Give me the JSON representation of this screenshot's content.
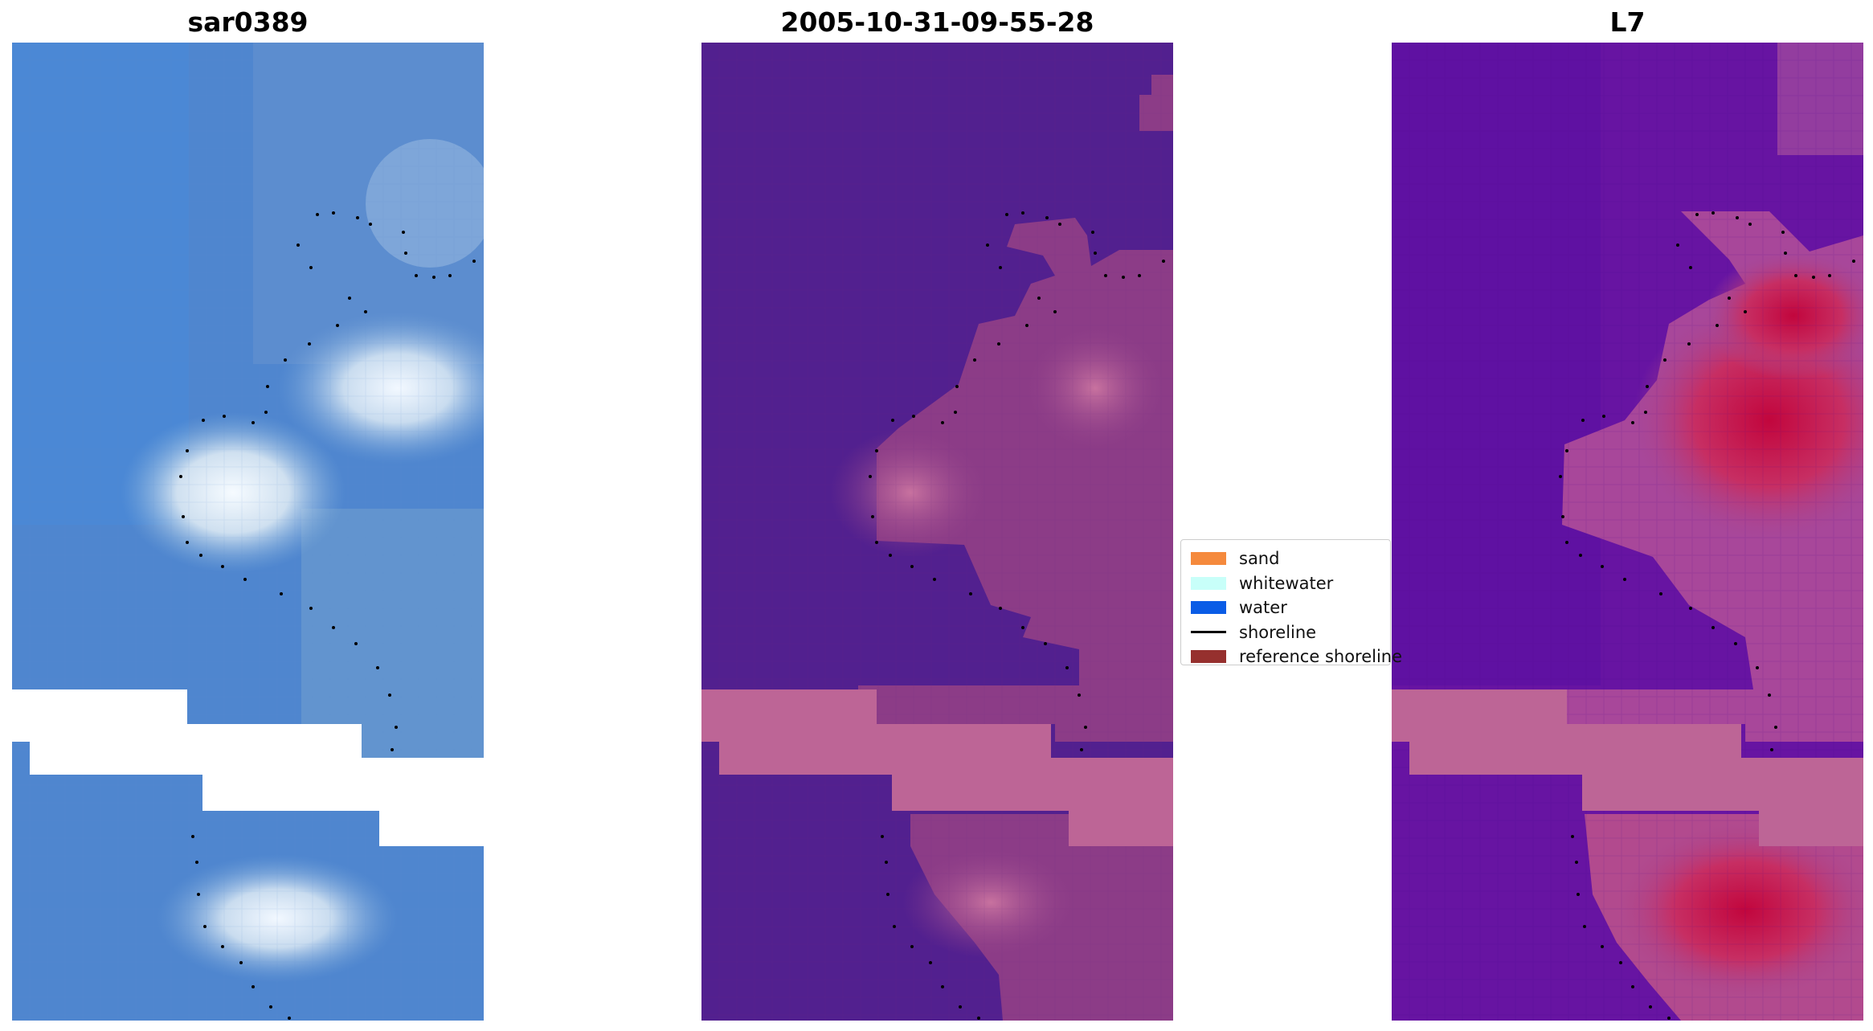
{
  "panels": [
    {
      "id": "sar",
      "title": "sar0389"
    },
    {
      "id": "classification",
      "title": "2005-10-31-09-55-28"
    },
    {
      "id": "index",
      "title": "L7"
    }
  ],
  "legend": {
    "items": [
      {
        "label": "sand",
        "color": "#f58a3d",
        "type": "patch"
      },
      {
        "label": "whitewater",
        "color": "#c8fff9",
        "type": "patch"
      },
      {
        "label": "water",
        "color": "#0a5ce6",
        "type": "patch"
      },
      {
        "label": "shoreline",
        "color": "#000000",
        "type": "line"
      },
      {
        "label": "reference shoreline",
        "color": "#96302e",
        "type": "patch"
      }
    ]
  },
  "colors": {
    "sar_base": "#4f86cf",
    "sar_bright": "#e9f2fb",
    "classification_water": "#52208f",
    "classification_land": "#8c3c87",
    "classification_bright": "#c06aa0",
    "nodata_stripe": "#bd6596",
    "index_low": "#5a0fa1",
    "index_high": "#c2063d",
    "shoreline_dots": "#000000"
  }
}
